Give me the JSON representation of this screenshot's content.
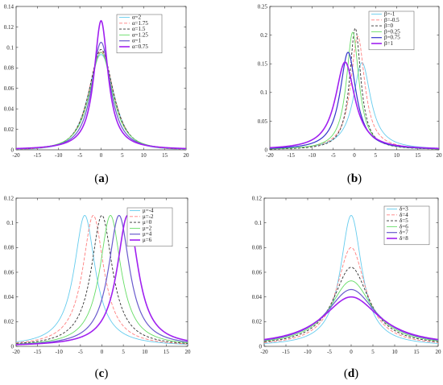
{
  "chart_data": [
    {
      "type": "line",
      "caption": "(a)",
      "xlim": [
        -20,
        20
      ],
      "ylim": [
        0,
        0.14
      ],
      "xticks": [
        "-20",
        "-15",
        "-10",
        "-5",
        "0",
        "5",
        "10",
        "15",
        "20"
      ],
      "yticks": [
        "0",
        "0.02",
        "0.04",
        "0.06",
        "0.08",
        "0.1",
        "0.12",
        "0.14"
      ],
      "legend_position": "top-right",
      "param_symbol": "α",
      "series": [
        {
          "name": "α=2",
          "color": "#66ccee",
          "dash": "",
          "width": 0.9,
          "peak": 0.0,
          "peak_y": 0.093,
          "scale": 5.5,
          "tail": 2.0
        },
        {
          "name": "α=1.75",
          "color": "#ff7f7f",
          "dash": "4,2",
          "width": 0.9,
          "peak": 0.0,
          "peak_y": 0.096,
          "scale": 5.0,
          "tail": 1.8
        },
        {
          "name": "α=1.5",
          "color": "#333333",
          "dash": "3,2",
          "width": 0.9,
          "peak": 0.0,
          "peak_y": 0.098,
          "scale": 4.5,
          "tail": 1.6
        },
        {
          "name": "α=1.25",
          "color": "#66dd66",
          "dash": "",
          "width": 0.9,
          "peak": 0.0,
          "peak_y": 0.095,
          "scale": 4.0,
          "tail": 1.4
        },
        {
          "name": "α=1",
          "color": "#6a5acd",
          "dash": "",
          "width": 1.2,
          "peak": 0.0,
          "peak_y": 0.105,
          "scale": 3.0,
          "tail": 1.2
        },
        {
          "name": "α=0.75",
          "color": "#a020f0",
          "dash": "",
          "width": 1.6,
          "peak": 0.0,
          "peak_y": 0.126,
          "scale": 2.0,
          "tail": 1.0
        }
      ]
    },
    {
      "type": "line",
      "caption": "(b)",
      "xlim": [
        -20,
        20
      ],
      "ylim": [
        0,
        0.25
      ],
      "xticks": [
        "-20",
        "-15",
        "-10",
        "-5",
        "0",
        "5",
        "10",
        "15",
        "20"
      ],
      "yticks": [
        "0",
        "0.05",
        "0.1",
        "0.15",
        "0.2",
        "0.25"
      ],
      "legend_position": "top-right",
      "param_symbol": "β",
      "series": [
        {
          "name": "β=-1",
          "color": "#66ccee",
          "dash": "",
          "width": 0.9,
          "peak": 1.8,
          "peak_y": 0.152,
          "scale": 2.5,
          "tail": 1.0
        },
        {
          "name": "β=-0.5",
          "color": "#ff7f7f",
          "dash": "4,2",
          "width": 0.9,
          "peak": 0.8,
          "peak_y": 0.198,
          "scale": 2.0,
          "tail": 1.0
        },
        {
          "name": "β=0",
          "color": "#333333",
          "dash": "3,2",
          "width": 0.9,
          "peak": 0.2,
          "peak_y": 0.212,
          "scale": 1.6,
          "tail": 1.0
        },
        {
          "name": "β=0.25",
          "color": "#66dd66",
          "dash": "",
          "width": 0.9,
          "peak": -0.4,
          "peak_y": 0.205,
          "scale": 1.8,
          "tail": 1.0
        },
        {
          "name": "β=0.75",
          "color": "#3333cc",
          "dash": "",
          "width": 1.2,
          "peak": -1.5,
          "peak_y": 0.17,
          "scale": 2.3,
          "tail": 1.0
        },
        {
          "name": "β=1",
          "color": "#a020f0",
          "dash": "",
          "width": 1.6,
          "peak": -2.2,
          "peak_y": 0.153,
          "scale": 2.8,
          "tail": 1.0
        }
      ]
    },
    {
      "type": "line",
      "caption": "(c)",
      "xlim": [
        -20,
        20
      ],
      "ylim": [
        0,
        0.12
      ],
      "xticks": [
        "-20",
        "-15",
        "-10",
        "-5",
        "0",
        "5",
        "10",
        "15",
        "20"
      ],
      "yticks": [
        "0",
        "0.02",
        "0.04",
        "0.06",
        "0.08",
        "0.1",
        "0.12"
      ],
      "legend_position": "top-right",
      "param_symbol": "μ",
      "series": [
        {
          "name": "μ=-4",
          "color": "#66ccee",
          "dash": "",
          "width": 0.9,
          "peak": -4,
          "peak_y": 0.106,
          "scale": 3.0,
          "tail": 1.0
        },
        {
          "name": "μ=-2",
          "color": "#ff7f7f",
          "dash": "4,2",
          "width": 0.9,
          "peak": -2,
          "peak_y": 0.106,
          "scale": 3.0,
          "tail": 1.0
        },
        {
          "name": "μ=0",
          "color": "#333333",
          "dash": "3,2",
          "width": 0.9,
          "peak": 0,
          "peak_y": 0.106,
          "scale": 3.0,
          "tail": 1.0
        },
        {
          "name": "μ=2",
          "color": "#66dd66",
          "dash": "",
          "width": 0.9,
          "peak": 2,
          "peak_y": 0.106,
          "scale": 3.0,
          "tail": 1.0
        },
        {
          "name": "μ=4",
          "color": "#6a5acd",
          "dash": "",
          "width": 1.2,
          "peak": 4,
          "peak_y": 0.106,
          "scale": 3.0,
          "tail": 1.0
        },
        {
          "name": "μ=6",
          "color": "#a020f0",
          "dash": "",
          "width": 1.6,
          "peak": 6,
          "peak_y": 0.106,
          "scale": 3.0,
          "tail": 1.0
        }
      ]
    },
    {
      "type": "line",
      "caption": "(d)",
      "xlim": [
        -20,
        20
      ],
      "ylim": [
        0,
        0.12
      ],
      "xticks": [
        "-20",
        "-15",
        "-10",
        "-5",
        "0",
        "5",
        "10",
        "15",
        "20"
      ],
      "yticks": [
        "0",
        "0.02",
        "0.04",
        "0.06",
        "0.08",
        "0.1",
        "0.12"
      ],
      "legend_position": "top-right",
      "param_symbol": "δ",
      "series": [
        {
          "name": "δ=3",
          "color": "#66ccee",
          "dash": "",
          "width": 0.9,
          "peak": 0,
          "peak_y": 0.106,
          "scale": 3.0,
          "tail": 1.0
        },
        {
          "name": "δ=4",
          "color": "#ff7f7f",
          "dash": "4,2",
          "width": 0.9,
          "peak": 0,
          "peak_y": 0.08,
          "scale": 4.0,
          "tail": 1.0
        },
        {
          "name": "δ=5",
          "color": "#333333",
          "dash": "3,2",
          "width": 0.9,
          "peak": 0,
          "peak_y": 0.064,
          "scale": 5.0,
          "tail": 1.0
        },
        {
          "name": "δ=6",
          "color": "#66dd66",
          "dash": "",
          "width": 0.9,
          "peak": 0,
          "peak_y": 0.053,
          "scale": 6.0,
          "tail": 1.0
        },
        {
          "name": "δ=7",
          "color": "#6a5acd",
          "dash": "",
          "width": 1.2,
          "peak": 0,
          "peak_y": 0.046,
          "scale": 7.0,
          "tail": 1.0
        },
        {
          "name": "δ=8",
          "color": "#a020f0",
          "dash": "",
          "width": 1.6,
          "peak": 0,
          "peak_y": 0.04,
          "scale": 8.0,
          "tail": 1.0
        }
      ]
    }
  ]
}
